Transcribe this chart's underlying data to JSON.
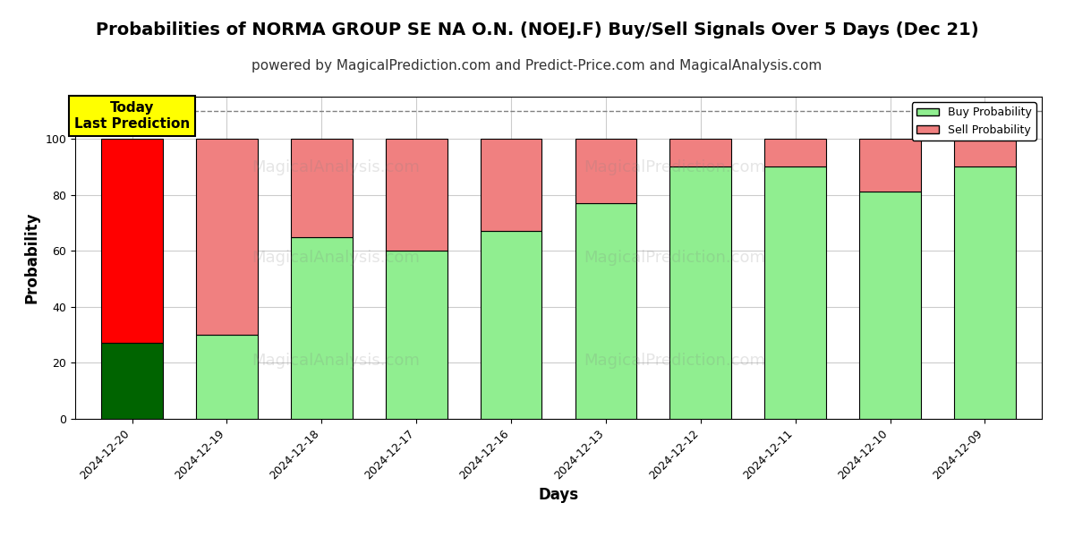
{
  "title": "Probabilities of NORMA GROUP SE NA O.N. (NOEJ.F) Buy/Sell Signals Over 5 Days (Dec 21)",
  "subtitle": "powered by MagicalPrediction.com and Predict-Price.com and MagicalAnalysis.com",
  "xlabel": "Days",
  "ylabel": "Probability",
  "dates": [
    "2024-12-20",
    "2024-12-19",
    "2024-12-18",
    "2024-12-17",
    "2024-12-16",
    "2024-12-13",
    "2024-12-12",
    "2024-12-11",
    "2024-12-10",
    "2024-12-09"
  ],
  "buy_values": [
    27,
    30,
    65,
    60,
    67,
    77,
    90,
    90,
    81,
    90
  ],
  "sell_values": [
    73,
    70,
    35,
    40,
    33,
    23,
    10,
    10,
    19,
    10
  ],
  "today_buy_color": "#006400",
  "today_sell_color": "#FF0000",
  "buy_color": "#90EE90",
  "sell_color": "#F08080",
  "bar_edge_color": "black",
  "bg_color": "white",
  "grid_color": "#cccccc",
  "annotation_bg": "#FFFF00",
  "annotation_text": "Today\nLast Prediction",
  "annotation_fontsize": 11,
  "title_fontsize": 14,
  "subtitle_fontsize": 11,
  "ylabel_fontsize": 12,
  "xlabel_fontsize": 12,
  "ylim": [
    0,
    115
  ],
  "dashed_line_y": 110,
  "legend_buy_label": "Buy Probability",
  "legend_sell_label": "Sell Probability",
  "bar_width": 0.65
}
